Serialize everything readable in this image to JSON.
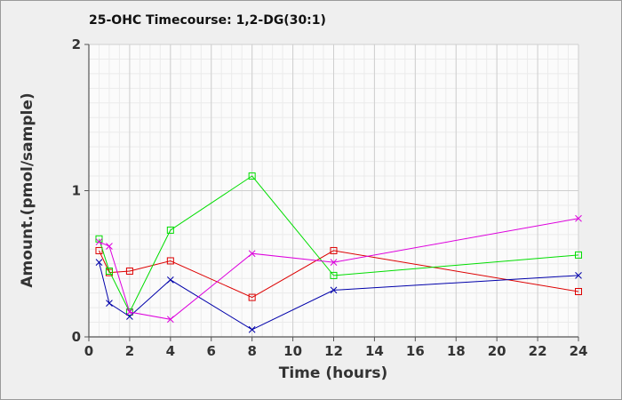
{
  "chart_data": {
    "type": "line",
    "title": "25-OHC Timecourse: 1,2-DG(30:1)",
    "xlabel": "Time (hours)",
    "ylabel": "Amount.(pmol/sample)",
    "xlim": [
      0,
      24
    ],
    "ylim": [
      0,
      2
    ],
    "x_ticks": [
      0,
      2,
      4,
      6,
      8,
      10,
      12,
      14,
      16,
      18,
      20,
      22,
      24
    ],
    "y_ticks": [
      0,
      1,
      2
    ],
    "grid": true,
    "legend": "none",
    "series": [
      {
        "color": "#dd0000",
        "marker": "square",
        "x": [
          0.5,
          1,
          2,
          4,
          8,
          12,
          24
        ],
        "y": [
          0.59,
          0.44,
          0.45,
          0.52,
          0.27,
          0.59,
          0.31
        ]
      },
      {
        "color": "#00dd00",
        "marker": "square",
        "x": [
          0.5,
          1,
          2,
          4,
          8,
          12,
          24
        ],
        "y": [
          0.67,
          0.45,
          0.17,
          0.73,
          1.1,
          0.42,
          0.56
        ]
      },
      {
        "color": "#0000aa",
        "marker": "x",
        "x": [
          0.5,
          1,
          2,
          4,
          8,
          12,
          24
        ],
        "y": [
          0.51,
          0.23,
          0.14,
          0.39,
          0.05,
          0.32,
          0.42
        ]
      },
      {
        "color": "#dd00dd",
        "marker": "x",
        "x": [
          0.5,
          1,
          2,
          4,
          8,
          12,
          24
        ],
        "y": [
          0.65,
          0.62,
          0.17,
          0.12,
          0.57,
          0.51,
          0.81
        ]
      }
    ]
  }
}
